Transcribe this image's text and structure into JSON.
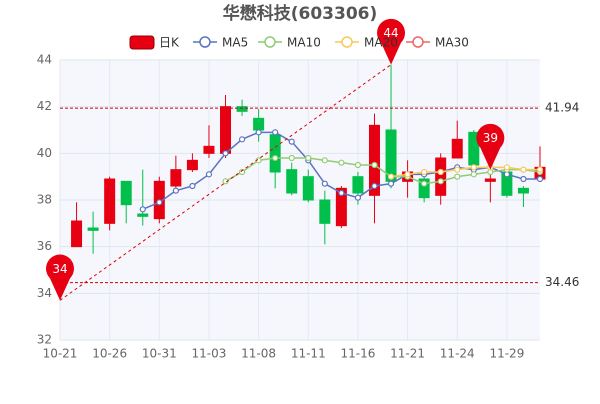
{
  "chart_data": {
    "type": "candlestick",
    "title": "华懋科技(603306)",
    "categories": [
      "10-21",
      null,
      null,
      "10-26",
      null,
      null,
      "10-31",
      null,
      null,
      "11-03",
      null,
      null,
      "11-08",
      null,
      null,
      "11-11",
      null,
      null,
      "11-16",
      null,
      null,
      "11-21",
      null,
      null,
      "11-24",
      null,
      null,
      "11-29",
      null,
      null
    ],
    "ylim": [
      32,
      44
    ],
    "yticks": [
      32,
      34,
      36,
      38,
      40,
      42,
      44
    ],
    "grid": true,
    "up_color": "#e60012",
    "down_color": "#00c04b",
    "candles": {
      "name": "日K",
      "open": [
        null,
        36.0,
        36.8,
        37.0,
        38.8,
        37.4,
        37.2,
        38.6,
        39.3,
        40.0,
        40.0,
        42.0,
        41.5,
        40.8,
        39.3,
        39.0,
        38.0,
        36.9,
        39.0,
        38.2,
        41.0,
        38.8,
        38.9,
        38.2,
        39.8,
        40.9,
        38.8,
        39.2,
        38.5,
        38.9
      ],
      "close": [
        null,
        37.1,
        36.7,
        38.9,
        37.8,
        37.3,
        38.8,
        39.3,
        39.7,
        40.3,
        42.0,
        41.8,
        41.0,
        39.2,
        38.3,
        38.0,
        37.0,
        38.5,
        38.3,
        41.2,
        38.8,
        39.2,
        38.1,
        39.8,
        40.6,
        39.5,
        38.9,
        38.2,
        38.3,
        39.4
      ],
      "high": [
        null,
        37.9,
        37.5,
        39.0,
        38.8,
        39.3,
        39.0,
        39.9,
        40.0,
        41.2,
        42.5,
        42.3,
        41.9,
        41.0,
        39.6,
        39.3,
        38.4,
        38.6,
        39.2,
        41.7,
        43.8,
        39.7,
        39.2,
        40.0,
        41.4,
        41.0,
        39.1,
        39.3,
        38.6,
        40.3
      ],
      "low": [
        null,
        36.0,
        35.7,
        36.7,
        37.0,
        36.9,
        37.0,
        38.3,
        39.2,
        39.8,
        39.8,
        41.6,
        40.5,
        38.5,
        38.2,
        37.9,
        36.1,
        36.8,
        37.8,
        37.0,
        38.5,
        38.1,
        37.9,
        37.8,
        39.8,
        39.3,
        37.9,
        38.1,
        37.7,
        38.8
      ]
    },
    "series": [
      {
        "name": "MA5",
        "color": "#5b73c0",
        "values": [
          null,
          null,
          null,
          null,
          null,
          37.6,
          37.9,
          38.4,
          38.6,
          39.1,
          40.0,
          40.6,
          40.9,
          40.9,
          40.5,
          39.7,
          38.7,
          38.3,
          38.1,
          38.6,
          38.7,
          39.1,
          39.1,
          39.2,
          39.4,
          39.3,
          39.4,
          39.1,
          38.9,
          38.9
        ]
      },
      {
        "name": "MA10",
        "color": "#91cc75",
        "values": [
          null,
          null,
          null,
          null,
          null,
          null,
          null,
          null,
          null,
          null,
          38.8,
          39.2,
          39.7,
          39.8,
          39.8,
          39.8,
          39.7,
          39.6,
          39.5,
          39.5,
          39.0,
          39.0,
          38.7,
          38.8,
          39.0,
          39.1,
          39.2,
          39.3,
          39.3,
          39.2
        ]
      },
      {
        "name": "MA20",
        "color": "#fac858",
        "values": [
          null,
          null,
          null,
          null,
          null,
          null,
          null,
          null,
          null,
          null,
          null,
          null,
          null,
          null,
          null,
          null,
          null,
          null,
          null,
          null,
          39.0,
          39.1,
          39.2,
          39.2,
          39.3,
          39.4,
          39.4,
          39.4,
          39.3,
          39.3
        ]
      },
      {
        "name": "MA30",
        "color": "#ee6666",
        "values": [
          null,
          null,
          null,
          null,
          null,
          null,
          null,
          null,
          null,
          null,
          null,
          null,
          null,
          null,
          null,
          null,
          null,
          null,
          null,
          null,
          null,
          null,
          null,
          null,
          null,
          null,
          null,
          null,
          null,
          null
        ]
      }
    ],
    "hlines": [
      41.94,
      34.46
    ],
    "mark_points": [
      {
        "x": 0,
        "value": 33.7,
        "label": "34"
      },
      {
        "x": 20,
        "value": 43.8,
        "label": "44"
      },
      {
        "x": 26,
        "value": 39.3,
        "label": "39"
      }
    ]
  }
}
